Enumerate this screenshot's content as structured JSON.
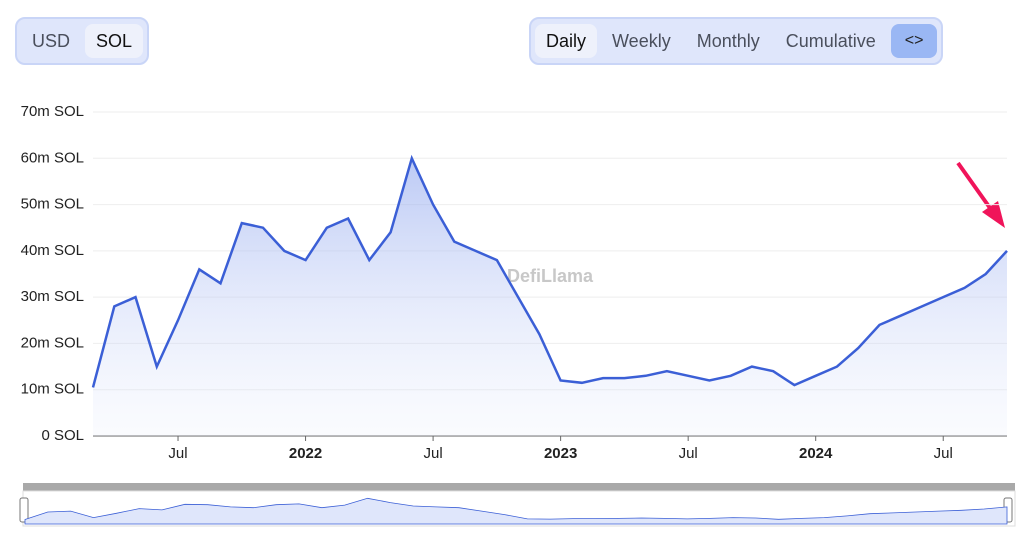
{
  "ui": {
    "currency_options": [
      "USD",
      "SOL"
    ],
    "currency_selected": "SOL",
    "period_options": [
      "Daily",
      "Weekly",
      "Monthly",
      "Cumulative"
    ],
    "period_selected": "Daily",
    "embed_button": "<>"
  },
  "watermark": "DefiLlama",
  "chart_data": {
    "type": "area",
    "x": [
      "2021-03",
      "2021-04",
      "2021-05",
      "2021-06",
      "2021-07",
      "2021-08",
      "2021-09",
      "2021-10",
      "2021-11",
      "2021-12",
      "2022-01",
      "2022-02",
      "2022-03",
      "2022-04",
      "2022-05",
      "2022-06",
      "2022-07",
      "2022-08",
      "2022-09",
      "2022-10",
      "2022-11",
      "2022-12",
      "2023-01",
      "2023-02",
      "2023-03",
      "2023-04",
      "2023-05",
      "2023-06",
      "2023-07",
      "2023-08",
      "2023-09",
      "2023-10",
      "2023-11",
      "2023-12",
      "2024-01",
      "2024-02",
      "2024-03",
      "2024-04",
      "2024-05",
      "2024-06",
      "2024-07",
      "2024-08",
      "2024-09",
      "2024-10"
    ],
    "series": [
      {
        "name": "SOL",
        "color": "#3b5fd6",
        "values": [
          10500000,
          28000000,
          30000000,
          15000000,
          25000000,
          36000000,
          33000000,
          46000000,
          45000000,
          40000000,
          38000000,
          45000000,
          47000000,
          38000000,
          44000000,
          60000000,
          50000000,
          42000000,
          40000000,
          38000000,
          30000000,
          22000000,
          12000000,
          11500000,
          12500000,
          12500000,
          13000000,
          14000000,
          13000000,
          12000000,
          13000000,
          15000000,
          14000000,
          11000000,
          13000000,
          15000000,
          19000000,
          24000000,
          26000000,
          28000000,
          30000000,
          32000000,
          35000000,
          40000000
        ]
      }
    ],
    "xlim": [
      "2021-03",
      "2024-10"
    ],
    "xticks": [
      {
        "value": "2021-07",
        "label": "Jul"
      },
      {
        "value": "2022-01",
        "label": "2022"
      },
      {
        "value": "2022-07",
        "label": "Jul"
      },
      {
        "value": "2023-01",
        "label": "2023"
      },
      {
        "value": "2023-07",
        "label": "Jul"
      },
      {
        "value": "2024-01",
        "label": "2024"
      },
      {
        "value": "2024-07",
        "label": "Jul"
      }
    ],
    "ylim": [
      0,
      70000000
    ],
    "yticks": [
      {
        "value": 0,
        "label": "0 SOL"
      },
      {
        "value": 10000000,
        "label": "10m SOL"
      },
      {
        "value": 20000000,
        "label": "20m SOL"
      },
      {
        "value": 30000000,
        "label": "30m SOL"
      },
      {
        "value": 40000000,
        "label": "40m SOL"
      },
      {
        "value": 50000000,
        "label": "50m SOL"
      },
      {
        "value": 60000000,
        "label": "60m SOL"
      },
      {
        "value": 70000000,
        "label": "70m SOL"
      }
    ],
    "grid": true
  }
}
